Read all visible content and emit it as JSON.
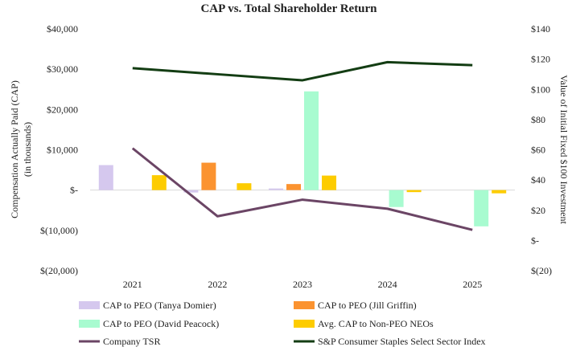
{
  "chart_data": {
    "type": "bar+line",
    "title": "CAP vs. Total Shareholder Return",
    "categories": [
      "2021",
      "2022",
      "2023",
      "2024",
      "2025"
    ],
    "y_left": {
      "label_line1": "Compensation Actually Paid (CAP)",
      "label_line2": "(in thousands)",
      "range": [
        -20000,
        40000
      ],
      "ticks": [
        {
          "value": 40000,
          "label": "$40,000"
        },
        {
          "value": 30000,
          "label": "$30,000"
        },
        {
          "value": 20000,
          "label": "$20,000"
        },
        {
          "value": 10000,
          "label": "$10,000"
        },
        {
          "value": 0,
          "label": "$-"
        },
        {
          "value": -10000,
          "label": "$(10,000)"
        },
        {
          "value": -20000,
          "label": "$(20,000)"
        }
      ]
    },
    "y_right": {
      "label": "Value of Initial Fixed $100 Investment",
      "range": [
        -20,
        140
      ],
      "ticks": [
        {
          "value": 140,
          "label": "$140"
        },
        {
          "value": 120,
          "label": "$120"
        },
        {
          "value": 100,
          "label": "$100"
        },
        {
          "value": 80,
          "label": "$80"
        },
        {
          "value": 60,
          "label": "$60"
        },
        {
          "value": 40,
          "label": "$40"
        },
        {
          "value": 20,
          "label": "$20"
        },
        {
          "value": 0,
          "label": "$-"
        },
        {
          "value": -20,
          "label": "$(20)"
        }
      ]
    },
    "bar_series": [
      {
        "name": "CAP to PEO (Tanya Domier)",
        "color": "#d5c8ee",
        "values": [
          6200,
          -600,
          400,
          null,
          null
        ]
      },
      {
        "name": "CAP to PEO (Jill Griffin)",
        "color": "#fb9330",
        "values": [
          null,
          6800,
          1500,
          null,
          null
        ]
      },
      {
        "name": "CAP to PEO (David Peacock)",
        "color": "#a8fbd0",
        "values": [
          null,
          null,
          24500,
          -4200,
          -9000
        ]
      },
      {
        "name": "Avg. CAP to Non-PEO NEOs",
        "color": "#fdcc00",
        "values": [
          3700,
          1700,
          3600,
          -500,
          -800
        ]
      }
    ],
    "line_series": [
      {
        "name": "Company TSR",
        "color": "#6b4565",
        "values": [
          61,
          16,
          27,
          21,
          7
        ]
      },
      {
        "name": "S&P Consumer Staples Select Sector Index",
        "color": "#133d13",
        "values": [
          114,
          110,
          106,
          118,
          116
        ]
      }
    ],
    "legend": {
      "rows": [
        [
          {
            "label": "CAP to PEO (Tanya Domier)",
            "kind": "bar",
            "color": "#d5c8ee"
          },
          {
            "label": "CAP to PEO (Jill Griffin)",
            "kind": "bar",
            "color": "#fb9330"
          }
        ],
        [
          {
            "label": "CAP to PEO (David Peacock)",
            "kind": "bar",
            "color": "#a8fbd0"
          },
          {
            "label": "Avg. CAP to Non-PEO NEOs",
            "kind": "bar",
            "color": "#fdcc00"
          }
        ],
        [
          {
            "label": "Company TSR",
            "kind": "line",
            "color": "#6b4565"
          },
          {
            "label": "S&P Consumer Staples Select Sector Index",
            "kind": "line",
            "color": "#133d13"
          }
        ]
      ],
      "position": "bottom"
    },
    "grid": false
  }
}
